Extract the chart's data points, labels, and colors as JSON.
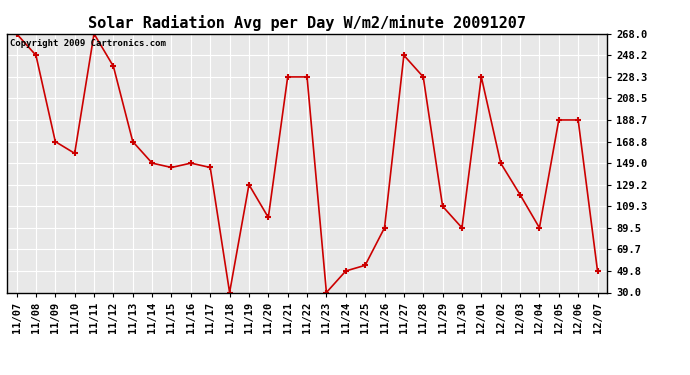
{
  "title": "Solar Radiation Avg per Day W/m2/minute 20091207",
  "copyright_text": "Copyright 2009 Cartronics.com",
  "dates": [
    "11/07",
    "11/08",
    "11/09",
    "11/10",
    "11/11",
    "11/12",
    "11/13",
    "11/14",
    "11/15",
    "11/16",
    "11/17",
    "11/18",
    "11/19",
    "11/20",
    "11/21",
    "11/22",
    "11/23",
    "11/24",
    "11/25",
    "11/26",
    "11/27",
    "11/28",
    "11/29",
    "11/30",
    "12/01",
    "12/02",
    "12/03",
    "12/04",
    "12/05",
    "12/06",
    "12/07"
  ],
  "values": [
    268.0,
    248.2,
    168.8,
    158.0,
    268.0,
    238.0,
    168.8,
    149.0,
    145.0,
    149.0,
    145.0,
    30.0,
    129.2,
    99.0,
    228.3,
    228.3,
    30.0,
    49.8,
    55.0,
    89.5,
    248.2,
    228.3,
    109.3,
    89.5,
    228.3,
    149.0,
    120.0,
    89.5,
    188.7,
    188.7,
    49.8
  ],
  "line_color": "#cc0000",
  "marker_color": "#cc0000",
  "background_color": "#ffffff",
  "plot_bg_color": "#e8e8e8",
  "grid_color": "#ffffff",
  "yticks": [
    30.0,
    49.8,
    69.7,
    89.5,
    109.3,
    129.2,
    149.0,
    168.8,
    188.7,
    208.5,
    228.3,
    248.2,
    268.0
  ],
  "ylim": [
    30.0,
    268.0
  ],
  "title_fontsize": 11,
  "tick_fontsize": 7.5,
  "copyright_fontsize": 6.5
}
